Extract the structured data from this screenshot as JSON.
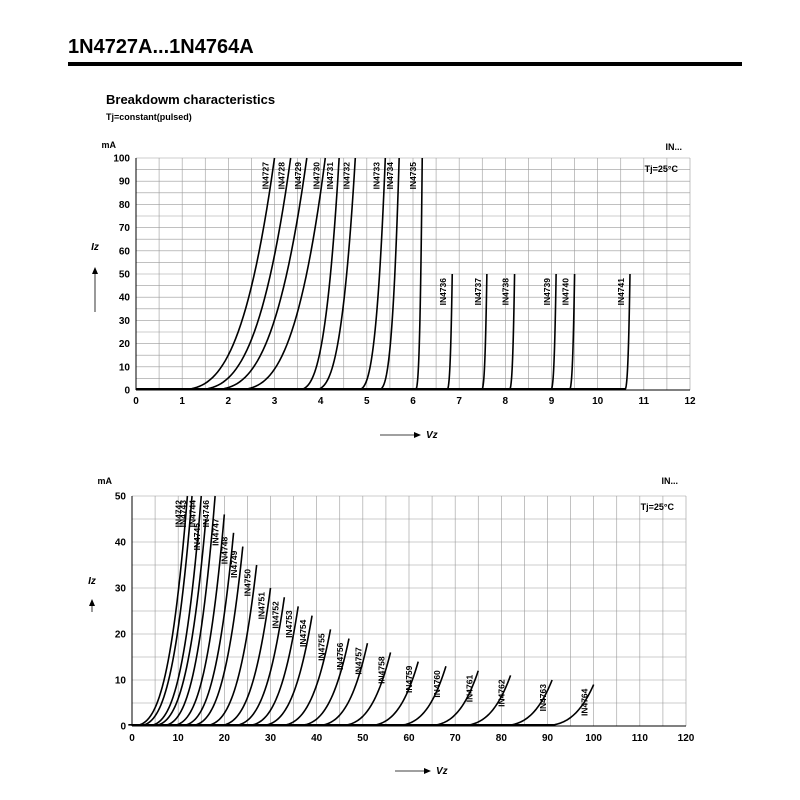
{
  "page": {
    "header": "1N4727A...1N4764A",
    "subtitle": "Breakdowm characteristics",
    "condition": "Tj=constant(pulsed)"
  },
  "chart_data": [
    {
      "type": "line",
      "ylabel": "Iz",
      "yunit": "mA",
      "xlabel": "Vz",
      "xlim": [
        0,
        12
      ],
      "ylim": [
        0,
        100
      ],
      "xticks": [
        "0",
        "1",
        "2",
        "3",
        "4",
        "5",
        "6",
        "7",
        "8",
        "9",
        "10",
        "11",
        "12"
      ],
      "yticks": [
        "0",
        "10",
        "20",
        "30",
        "40",
        "50",
        "60",
        "70",
        "80",
        "90",
        "100"
      ],
      "corner_label": "IN...",
      "temp_label": "Tj=25°C",
      "series": [
        {
          "name": "IN4727",
          "vz": 3.0,
          "ymax": 100,
          "knee": 1.4
        },
        {
          "name": "IN4728",
          "vz": 3.35,
          "ymax": 100,
          "knee": 1.4
        },
        {
          "name": "IN4729",
          "vz": 3.7,
          "ymax": 100,
          "knee": 1.4
        },
        {
          "name": "IN4730",
          "vz": 4.1,
          "ymax": 100,
          "knee": 1.3
        },
        {
          "name": "IN4731",
          "vz": 4.4,
          "ymax": 100,
          "knee": 0.6
        },
        {
          "name": "IN4732",
          "vz": 4.75,
          "ymax": 100,
          "knee": 0.6
        },
        {
          "name": "IN4733",
          "vz": 5.4,
          "ymax": 100,
          "knee": 0.4
        },
        {
          "name": "IN4734",
          "vz": 5.7,
          "ymax": 100,
          "knee": 0.3
        },
        {
          "name": "IN4735",
          "vz": 6.2,
          "ymax": 100,
          "knee": 0.1
        },
        {
          "name": "IN4736",
          "vz": 6.85,
          "ymax": 50,
          "knee": 0.08
        },
        {
          "name": "IN4737",
          "vz": 7.6,
          "ymax": 50,
          "knee": 0.08
        },
        {
          "name": "IN4738",
          "vz": 8.2,
          "ymax": 50,
          "knee": 0.08
        },
        {
          "name": "IN4739",
          "vz": 9.1,
          "ymax": 50,
          "knee": 0.08
        },
        {
          "name": "IN4740",
          "vz": 9.5,
          "ymax": 50,
          "knee": 0.08
        },
        {
          "name": "IN4741",
          "vz": 10.7,
          "ymax": 50,
          "knee": 0.08
        }
      ]
    },
    {
      "type": "line",
      "ylabel": "Iz",
      "yunit": "mA",
      "xlabel": "Vz",
      "xlim": [
        0,
        120
      ],
      "ylim": [
        0,
        50
      ],
      "xticks": [
        "0",
        "10",
        "20",
        "30",
        "40",
        "50",
        "60",
        "70",
        "80",
        "90",
        "100",
        "110",
        "120"
      ],
      "yticks": [
        "0",
        "10",
        "20",
        "30",
        "40",
        "50"
      ],
      "corner_label": "IN...",
      "temp_label": "Tj=25°C",
      "series": [
        {
          "name": "IN4742",
          "vz": 12,
          "ymax": 50,
          "knee": 0.8
        },
        {
          "name": "IN4743",
          "vz": 13,
          "ymax": 50,
          "knee": 0.8
        },
        {
          "name": "IN4744",
          "vz": 15,
          "ymax": 50,
          "knee": 0.8
        },
        {
          "name": "IN4745",
          "vz": 16,
          "ymax": 45,
          "knee": 0.8
        },
        {
          "name": "IN4746",
          "vz": 18,
          "ymax": 50,
          "knee": 0.8
        },
        {
          "name": "IN4747",
          "vz": 20,
          "ymax": 46,
          "knee": 0.8
        },
        {
          "name": "IN4748",
          "vz": 22,
          "ymax": 42,
          "knee": 0.8
        },
        {
          "name": "IN4749",
          "vz": 24,
          "ymax": 39,
          "knee": 0.8
        },
        {
          "name": "IN4750",
          "vz": 27,
          "ymax": 35,
          "knee": 0.8
        },
        {
          "name": "IN4751",
          "vz": 30,
          "ymax": 30,
          "knee": 0.8
        },
        {
          "name": "IN4752",
          "vz": 33,
          "ymax": 28,
          "knee": 0.8
        },
        {
          "name": "IN4753",
          "vz": 36,
          "ymax": 26,
          "knee": 0.8
        },
        {
          "name": "IN4754",
          "vz": 39,
          "ymax": 24,
          "knee": 0.8
        },
        {
          "name": "IN4755",
          "vz": 43,
          "ymax": 21,
          "knee": 0.8
        },
        {
          "name": "IN4756",
          "vz": 47,
          "ymax": 19,
          "knee": 0.8
        },
        {
          "name": "IN4757",
          "vz": 51,
          "ymax": 18,
          "knee": 0.8
        },
        {
          "name": "IN4758",
          "vz": 56,
          "ymax": 16,
          "knee": 0.8
        },
        {
          "name": "IN4759",
          "vz": 62,
          "ymax": 14,
          "knee": 0.8
        },
        {
          "name": "IN4760",
          "vz": 68,
          "ymax": 13,
          "knee": 0.8
        },
        {
          "name": "IN4761",
          "vz": 75,
          "ymax": 12,
          "knee": 0.8
        },
        {
          "name": "IN4762",
          "vz": 82,
          "ymax": 11,
          "knee": 0.8
        },
        {
          "name": "IN4763",
          "vz": 91,
          "ymax": 10,
          "knee": 0.8
        },
        {
          "name": "IN4764",
          "vz": 100,
          "ymax": 9,
          "knee": 0.8
        }
      ]
    }
  ]
}
